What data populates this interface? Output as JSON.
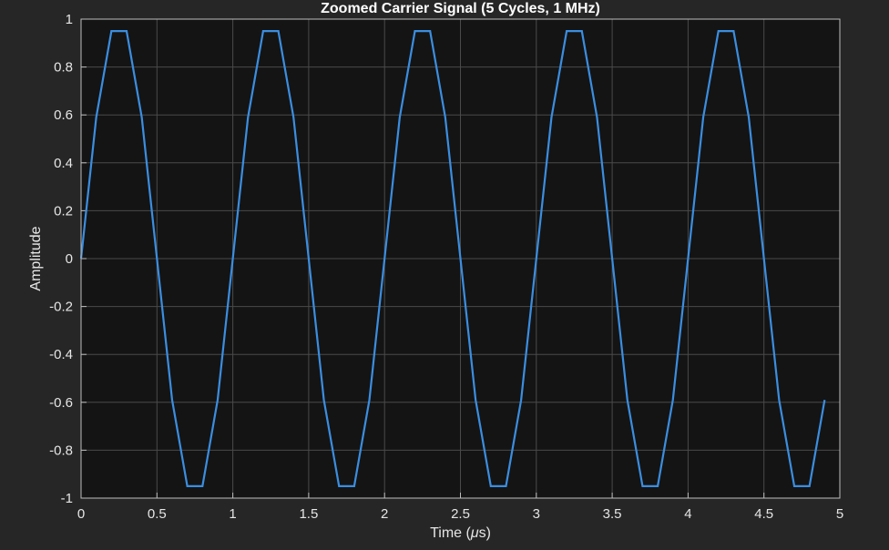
{
  "chart_data": {
    "type": "line",
    "title": "Zoomed Carrier Signal (5 Cycles, 1 MHz)",
    "xlabel_text": "Time  (",
    "xlabel_mu": "μ",
    "xlabel_unit": "s)",
    "ylabel": "Amplitude",
    "xlim": [
      0,
      5
    ],
    "ylim": [
      -1,
      1
    ],
    "xticks": [
      0,
      0.5,
      1,
      1.5,
      2,
      2.5,
      3,
      3.5,
      4,
      4.5,
      5
    ],
    "xtick_labels": [
      "0",
      "0.5",
      "1",
      "1.5",
      "2",
      "2.5",
      "3",
      "3.5",
      "4",
      "4.5",
      "5"
    ],
    "yticks": [
      1,
      0.8,
      0.6,
      0.4,
      0.2,
      0,
      -0.2,
      -0.4,
      -0.6,
      -0.8,
      -1
    ],
    "ytick_labels": [
      "1",
      "0.8",
      "0.6",
      "0.4",
      "0.2",
      "0",
      "-0.2",
      "-0.4",
      "-0.6",
      "-0.8",
      "-1"
    ],
    "grid": true,
    "series": [
      {
        "color": "#3b8ee0",
        "x": [
          0,
          0.1,
          0.2,
          0.3,
          0.4,
          0.5,
          0.6,
          0.7,
          0.8,
          0.9,
          1.0,
          1.1,
          1.2,
          1.3,
          1.4,
          1.5,
          1.6,
          1.7,
          1.8,
          1.9,
          2.0,
          2.1,
          2.2,
          2.3,
          2.4,
          2.5,
          2.6,
          2.7,
          2.8,
          2.9,
          3.0,
          3.1,
          3.2,
          3.3,
          3.4,
          3.5,
          3.6,
          3.7,
          3.8,
          3.9,
          4.0,
          4.1,
          4.2,
          4.3,
          4.4,
          4.5,
          4.6,
          4.7,
          4.8,
          4.9
        ],
        "y": [
          0,
          0.59,
          0.95,
          0.95,
          0.59,
          0,
          -0.59,
          -0.95,
          -0.95,
          -0.59,
          0,
          0.59,
          0.95,
          0.95,
          0.59,
          0,
          -0.59,
          -0.95,
          -0.95,
          -0.59,
          0,
          0.59,
          0.95,
          0.95,
          0.59,
          0,
          -0.59,
          -0.95,
          -0.95,
          -0.59,
          0,
          0.59,
          0.95,
          0.95,
          0.59,
          0,
          -0.59,
          -0.95,
          -0.95,
          -0.59,
          0,
          0.59,
          0.95,
          0.95,
          0.59,
          0,
          -0.59,
          -0.95,
          -0.95,
          -0.59
        ]
      }
    ]
  }
}
